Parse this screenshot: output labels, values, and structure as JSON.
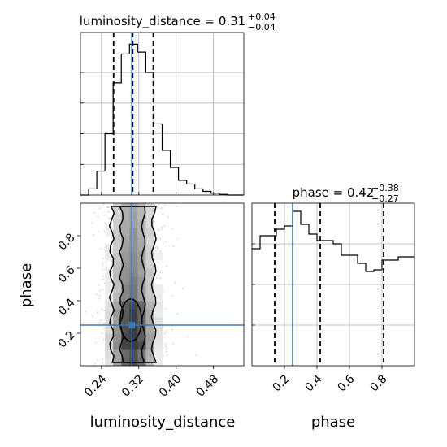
{
  "chart_data": {
    "type": "corner",
    "truth_color": "#3a78b4",
    "parameters": [
      {
        "name": "luminosity_distance",
        "title": {
          "prefix": "luminosity_distance = ",
          "median": "0.31",
          "plus": "+0.04",
          "minus": "−0.04"
        },
        "range": [
          0.195,
          0.545
        ],
        "ticks": [
          0.24,
          0.32,
          0.4,
          0.48
        ],
        "tick_labels": [
          "0.24",
          "0.32",
          "0.40",
          "0.48"
        ],
        "quantiles": [
          0.266,
          0.307,
          0.351
        ],
        "truth": 0.305,
        "hist_edges": [
          0.195,
          0.2125,
          0.23,
          0.2475,
          0.265,
          0.2825,
          0.3,
          0.3175,
          0.335,
          0.3525,
          0.37,
          0.3875,
          0.405,
          0.4225,
          0.44,
          0.4575,
          0.475,
          0.4925,
          0.51,
          0.5275,
          0.545
        ],
        "hist_values": [
          0.0,
          1.0,
          3.9,
          10.0,
          18.3,
          23.0,
          24.6,
          23.3,
          20.0,
          11.6,
          7.3,
          4.5,
          2.4,
          1.8,
          1.0,
          0.6,
          0.3,
          0.1,
          0.0,
          0.0
        ]
      },
      {
        "name": "phase",
        "title": {
          "prefix": "phase = ",
          "median": "0.42",
          "plus": "+0.38",
          "minus": "−0.27"
        },
        "range": [
          0.0,
          1.0
        ],
        "ticks": [
          0.2,
          0.4,
          0.6,
          0.8
        ],
        "tick_labels": [
          "0.2",
          "0.4",
          "0.6",
          "0.8"
        ],
        "quantiles": [
          0.14,
          0.42,
          0.81
        ],
        "truth": 0.25,
        "hist_edges": [
          0.0,
          0.05,
          0.1,
          0.15,
          0.2,
          0.25,
          0.3,
          0.35,
          0.4,
          0.45,
          0.5,
          0.55,
          0.6,
          0.65,
          0.7,
          0.75,
          0.8,
          0.85,
          0.9,
          0.95,
          1.0
        ],
        "hist_values": [
          0.72,
          0.8,
          0.8,
          0.84,
          0.86,
          0.95,
          0.87,
          0.81,
          0.77,
          0.77,
          0.75,
          0.68,
          0.68,
          0.63,
          0.58,
          0.59,
          0.65,
          0.65,
          0.67,
          0.67
        ]
      }
    ],
    "joint": {
      "x": "luminosity_distance",
      "y": "phase",
      "truth_point": [
        0.305,
        0.25
      ],
      "density_x_center": 0.307,
      "density_x_sigma": 0.031
    },
    "xlabels": [
      "luminosity_distance",
      "phase"
    ],
    "ylabel": "phase"
  }
}
